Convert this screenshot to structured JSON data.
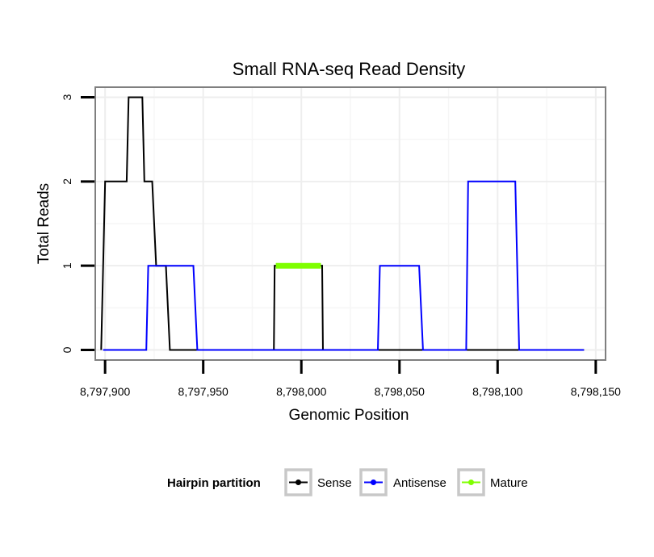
{
  "chart_data": {
    "type": "line",
    "title": "Small RNA-seq Read Density",
    "xlabel": "Genomic Position",
    "ylabel": "Total Reads",
    "xlim": [
      8797895,
      8798155
    ],
    "ylim": [
      -0.12,
      3.12
    ],
    "x_ticks": [
      8797900,
      8797950,
      8798000,
      8798050,
      8798100,
      8798150
    ],
    "x_tick_labels": [
      "8,797,900",
      "8,797,950",
      "8,798,000",
      "8,798,050",
      "8,798,100",
      "8,798,150"
    ],
    "y_ticks": [
      0,
      1,
      2,
      3
    ],
    "y_tick_labels": [
      "0",
      "1",
      "2",
      "3"
    ],
    "grid": true,
    "legend_position": "bottom",
    "legend_title": "Hairpin partition",
    "series": [
      {
        "name": "Sense",
        "color": "#000000",
        "x": [
          8797898,
          8797900,
          8797911,
          8797912,
          8797919,
          8797920,
          8797924,
          8797926,
          8797931,
          8797933,
          8798144
        ],
        "y": [
          0,
          2,
          2,
          3,
          3,
          2,
          2,
          1,
          1,
          0,
          0
        ]
      },
      {
        "name": "Antisense",
        "color": "#0000ff",
        "x": [
          8797899,
          8797921,
          8797922,
          8797945,
          8797947,
          8797985,
          8798010,
          8798039,
          8798040,
          8798060,
          8798062,
          8798084,
          8798085,
          8798109,
          8798111,
          8798144
        ],
        "y": [
          0,
          0,
          1,
          1,
          0,
          0,
          0,
          0,
          1,
          1,
          0,
          0,
          2,
          2,
          0,
          0
        ]
      },
      {
        "name": "Mature",
        "color": "#7fff00",
        "x": [
          8797987,
          8798010
        ],
        "y": [
          1,
          1
        ]
      }
    ],
    "mature_vertical_color": "#000000",
    "mature_region": {
      "x_start": 8797986,
      "x_end": 8798011
    }
  }
}
